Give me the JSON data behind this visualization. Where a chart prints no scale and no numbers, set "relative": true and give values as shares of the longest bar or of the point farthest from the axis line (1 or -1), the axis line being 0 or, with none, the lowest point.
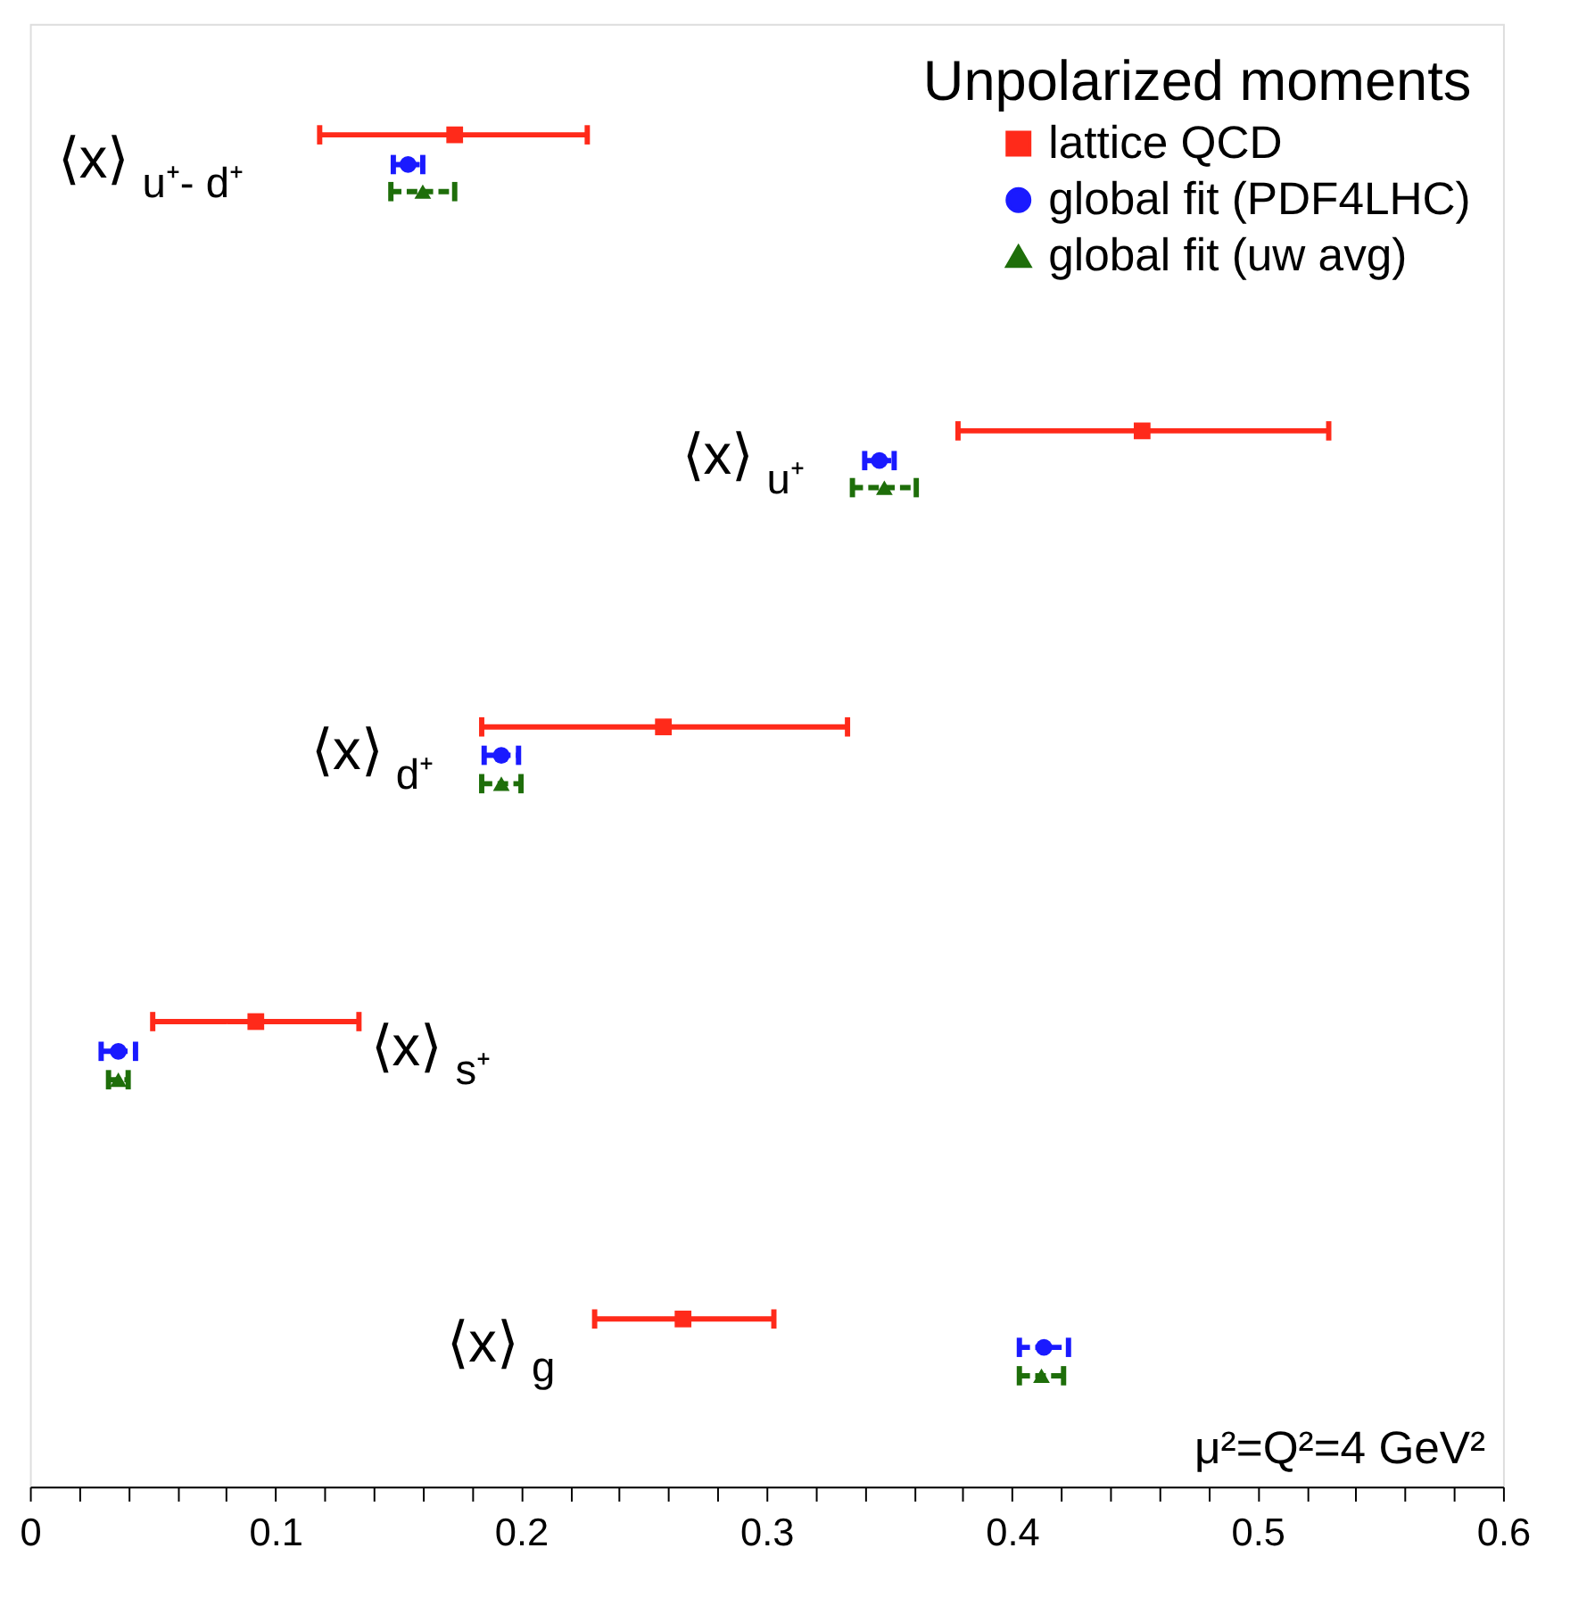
{
  "chart_data": {
    "type": "scatter",
    "relative": true,
    "legend_title": "Unpolarized moments",
    "legend": "top right",
    "grid": false,
    "tick_labels": "x",
    "xlim": [
      0,
      0.6
    ],
    "xticks": [
      0,
      {
        "value": 0.02,
        "label": null
      },
      {
        "value": 0.04,
        "label": null
      },
      {
        "value": 0.06,
        "label": null
      },
      {
        "value": 0.08,
        "label": null
      },
      0.1,
      {
        "value": 0.12,
        "label": null
      },
      {
        "value": 0.14,
        "label": null
      },
      {
        "value": 0.16,
        "label": null
      },
      {
        "value": 0.18,
        "label": null
      },
      0.2,
      {
        "value": 0.22,
        "label": null
      },
      {
        "value": 0.24,
        "label": null
      },
      {
        "value": 0.26,
        "label": null
      },
      {
        "value": 0.28,
        "label": null
      },
      0.3,
      {
        "value": 0.32,
        "label": null
      },
      {
        "value": 0.34,
        "label": null
      },
      {
        "value": 0.36,
        "label": null
      },
      {
        "value": 0.38,
        "label": null
      },
      0.4,
      {
        "value": 0.42,
        "label": null
      },
      {
        "value": 0.44,
        "label": null
      },
      {
        "value": 0.46,
        "label": null
      },
      {
        "value": 0.48,
        "label": null
      },
      0.5,
      {
        "value": 0.52,
        "label": null
      },
      {
        "value": 0.54,
        "label": null
      },
      {
        "value": 0.56,
        "label": null
      },
      {
        "value": 0.58,
        "label": null
      },
      0.6
    ],
    "series": [
      {
        "name": "lattice QCD",
        "color": "#ff2a1a",
        "marker": "square",
        "line_style": "solid",
        "x": [
          0.173,
          0.453,
          0.258,
          0.092,
          0.266
        ],
        "values": [
          1,
          0.781,
          0.562,
          0.344,
          0.124
        ],
        "xerrors": [
          [
            0.118,
            0.227
          ],
          [
            0.378,
            0.529
          ],
          [
            0.184,
            0.333
          ],
          [
            0.05,
            0.134
          ],
          [
            0.23,
            0.303
          ]
        ]
      },
      {
        "name": "global fit (PDF4LHC)",
        "color": "#1a1aff",
        "marker": "circle",
        "line_style": "dashed",
        "x": [
          0.154,
          0.346,
          0.192,
          0.036,
          0.413
        ],
        "values": [
          0.978,
          0.759,
          0.541,
          0.322,
          0.103
        ],
        "xerrors": [
          0.006,
          0.006,
          0.007,
          0.007,
          0.01
        ]
      },
      {
        "name": "global fit (uw avg)",
        "color": "#1e6e0a",
        "marker": "triangle",
        "line_style": "dashed",
        "x": [
          0.16,
          0.348,
          0.192,
          0.036,
          0.412
        ],
        "values": [
          0.958,
          0.739,
          0.52,
          0.301,
          0.082
        ],
        "xerrors": [
          0.013,
          0.013,
          0.008,
          0.004,
          0.009
        ]
      }
    ],
    "annotations": [
      "⟨x⟩$_{u⁺- d⁺}$",
      "⟨x⟩$_{u⁺}$",
      "⟨x⟩$_{d⁺}$",
      "⟨x⟩$_{s⁺}$",
      "⟨x⟩$_{g}$",
      "μ²=Q²=4 GeV²"
    ]
  }
}
